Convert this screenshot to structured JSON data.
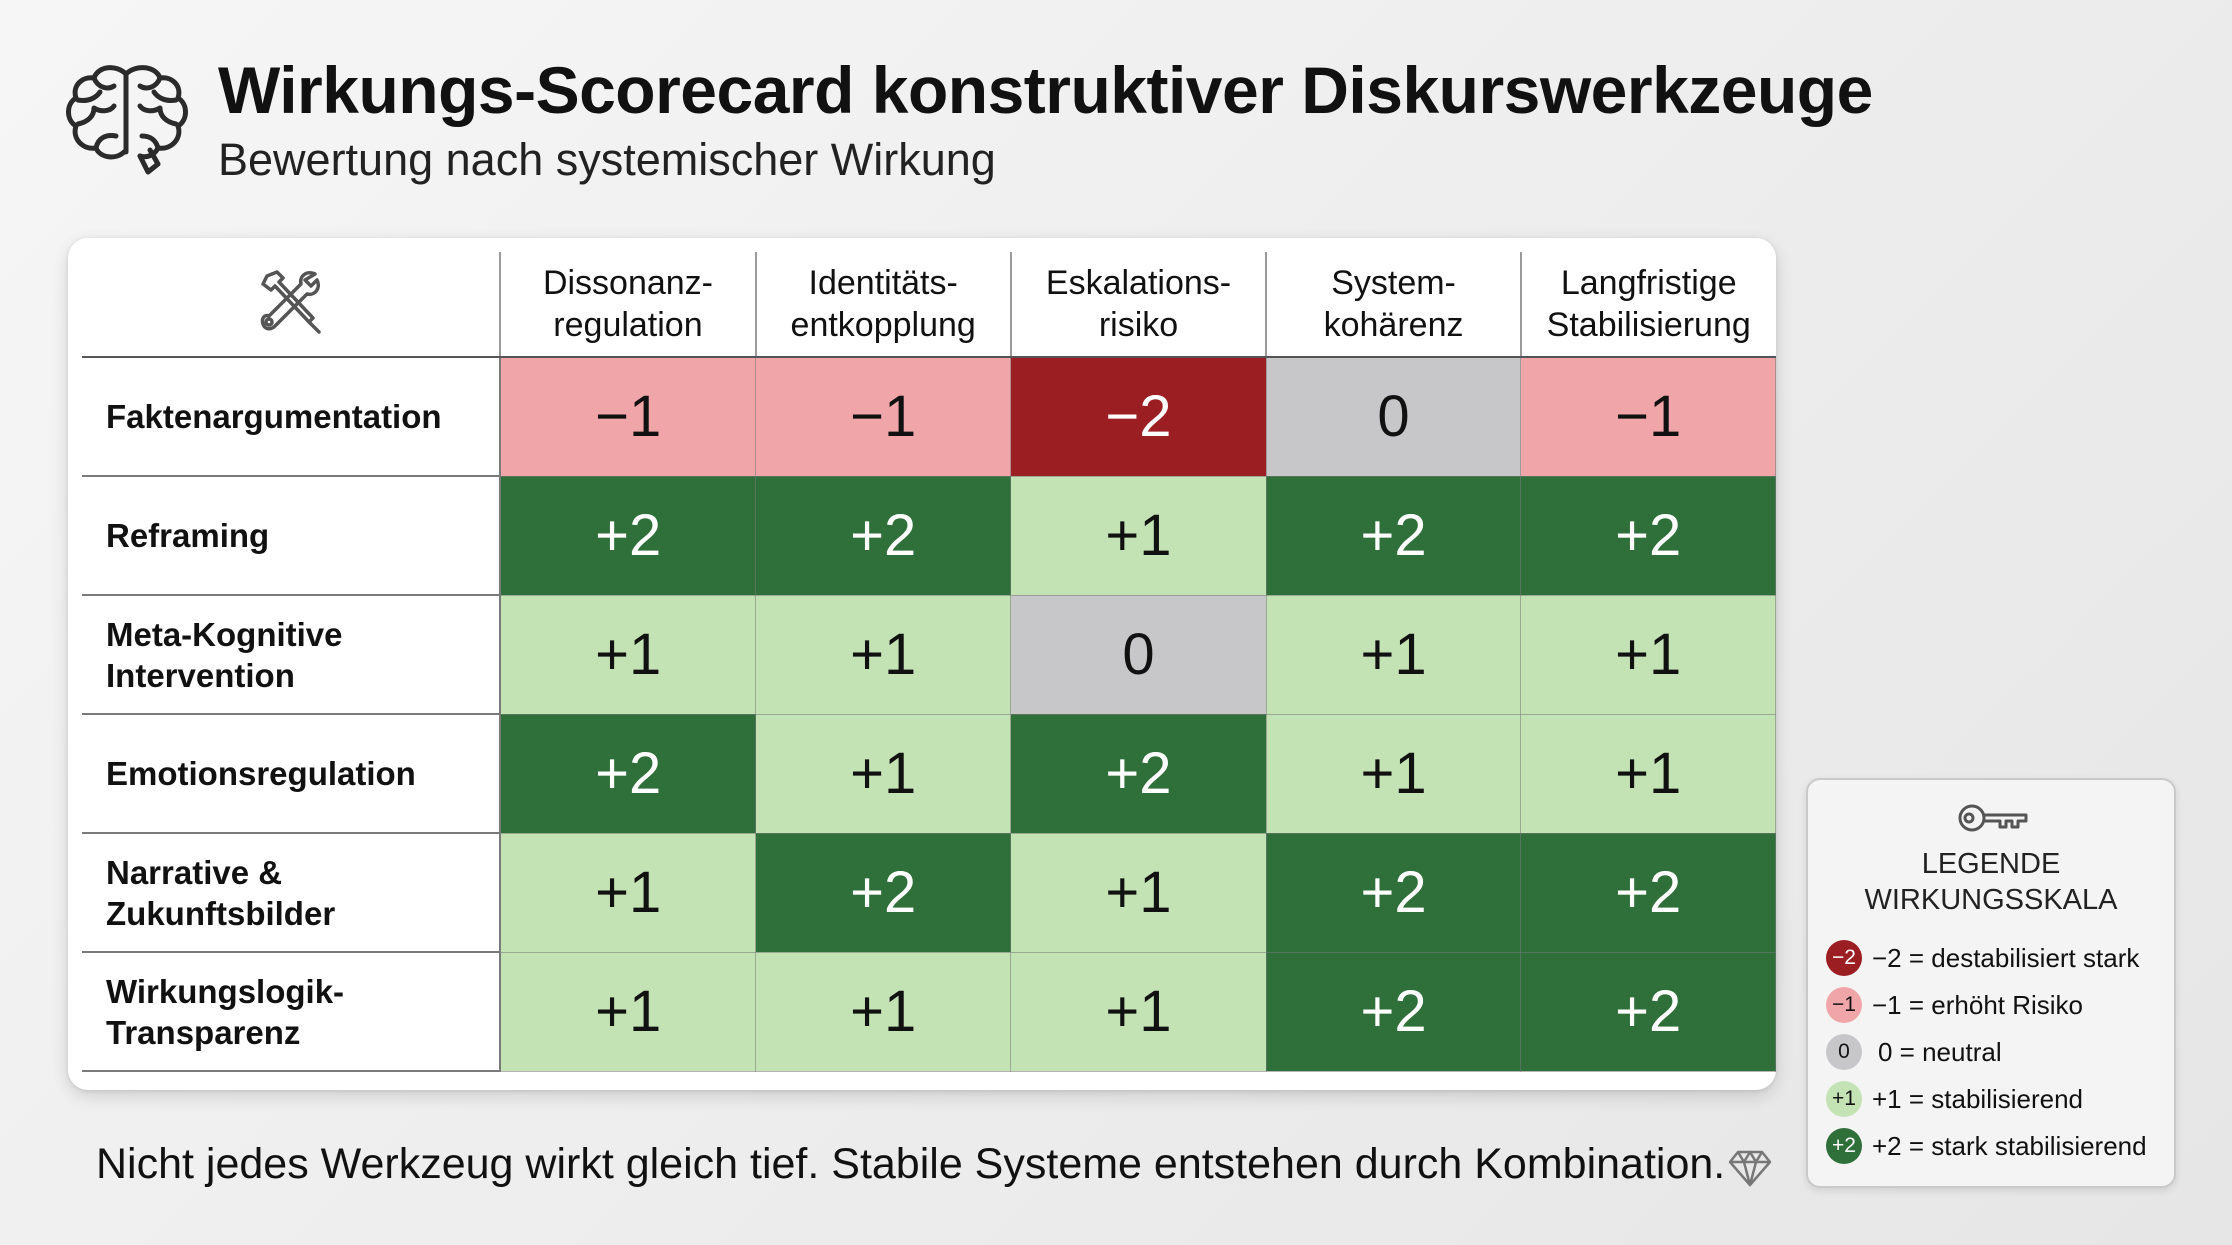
{
  "header": {
    "title": "Wirkungs-Scorecard konstruktiver Diskurswerkzeuge",
    "subtitle": "Bewertung nach systemischer Wirkung"
  },
  "icons": {
    "header": "brain-icon",
    "corner": "tools-icon",
    "legend": "key-icon",
    "footer": "diamond-icon"
  },
  "scorecard": {
    "columns": [
      [
        "Dissonanz-",
        "regulation"
      ],
      [
        "Identitäts-",
        "entkopplung"
      ],
      [
        "Eskalations-",
        "risiko"
      ],
      [
        "System-",
        "kohärenz"
      ],
      [
        "Langfristige",
        "Stabilisierung"
      ]
    ],
    "rows": [
      {
        "label": [
          "Faktenargumentation"
        ],
        "values": [
          "−1",
          "−1",
          "−2",
          "0",
          "−1"
        ],
        "levels": [
          -1,
          -1,
          -2,
          0,
          -1
        ]
      },
      {
        "label": [
          "Reframing"
        ],
        "values": [
          "+2",
          "+2",
          "+1",
          "+2",
          "+2"
        ],
        "levels": [
          2,
          2,
          1,
          2,
          2
        ]
      },
      {
        "label": [
          "Meta-Kognitive",
          "Intervention"
        ],
        "values": [
          "+1",
          "+1",
          "0",
          "+1",
          "+1"
        ],
        "levels": [
          1,
          1,
          0,
          1,
          1
        ]
      },
      {
        "label": [
          "Emotionsregulation"
        ],
        "values": [
          "+2",
          "+1",
          "+2",
          "+1",
          "+1"
        ],
        "levels": [
          2,
          1,
          2,
          1,
          1
        ]
      },
      {
        "label": [
          "Narrative &",
          "Zukunftsbilder"
        ],
        "values": [
          "+1",
          "+2",
          "+1",
          "+2",
          "+2"
        ],
        "levels": [
          1,
          2,
          1,
          2,
          2
        ]
      },
      {
        "label": [
          "Wirkungslogik-",
          "Transparenz"
        ],
        "values": [
          "+1",
          "+1",
          "+1",
          "+2",
          "+2"
        ],
        "levels": [
          1,
          1,
          1,
          2,
          2
        ]
      }
    ]
  },
  "colors": {
    "-2": "#9b1e22",
    "-1": "#f0a6a8",
    "0": "#c7c7c9",
    "1": "#c4e3b5",
    "2": "#2f6f3a"
  },
  "legend": {
    "title_line1": "LEGENDE",
    "title_line2": "WIRKUNGSSKALA",
    "items": [
      {
        "badge": "−2",
        "text": "−2 = destabilisiert stark",
        "level": -2
      },
      {
        "badge": "−1",
        "text": "−1 = erhöht Risiko",
        "level": -1
      },
      {
        "badge": "0",
        "text": "0 = neutral",
        "level": 0
      },
      {
        "badge": "+1",
        "text": "+1 = stabilisierend",
        "level": 1
      },
      {
        "badge": "+2",
        "text": "+2 = stark stabilisierend",
        "level": 2
      }
    ]
  },
  "footer": {
    "text": "Nicht jedes Werkzeug wirkt gleich tief. Stabile Systeme entstehen durch Kombination."
  }
}
